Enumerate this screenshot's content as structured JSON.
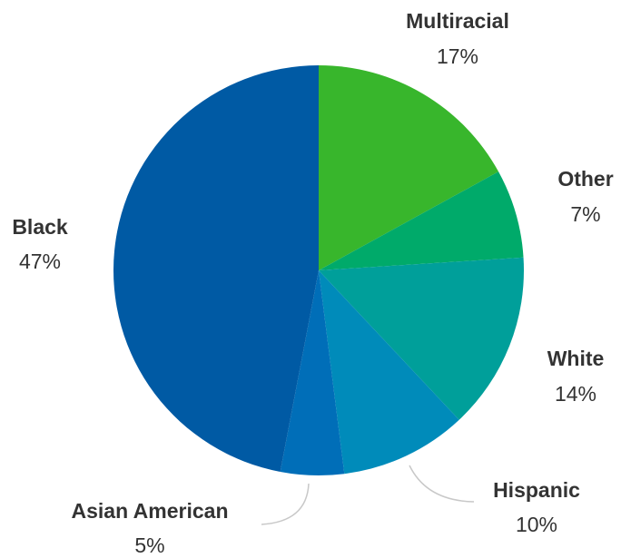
{
  "chart_data": {
    "type": "pie",
    "title": "",
    "slices": [
      {
        "label": "Multiracial",
        "value": 17,
        "display": "17%",
        "color": "#38b62c"
      },
      {
        "label": "Other",
        "value": 7,
        "display": "7%",
        "color": "#00aa6a"
      },
      {
        "label": "White",
        "value": 14,
        "display": "14%",
        "color": "#009f9a"
      },
      {
        "label": "Hispanic",
        "value": 10,
        "display": "10%",
        "color": "#008bba"
      },
      {
        "label": "Asian American",
        "value": 5,
        "display": "5%",
        "color": "#006eb8"
      },
      {
        "label": "Black",
        "value": 47,
        "display": "47%",
        "color": "#005aa4"
      }
    ],
    "start_angle": "12 o'clock",
    "direction": "clockwise",
    "legend": "none",
    "labels": "outside with percentages"
  }
}
